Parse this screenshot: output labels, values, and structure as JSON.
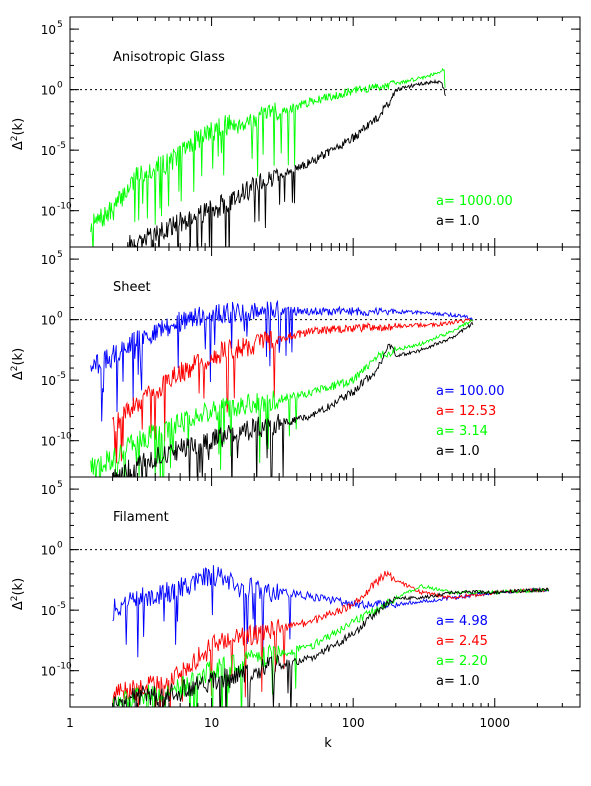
{
  "figure": {
    "xlabel": "k",
    "x_tick_labels": [
      "1",
      "10",
      "100",
      "1000"
    ],
    "y_tick_labels": [
      "10",
      "10",
      "10",
      "10"
    ],
    "y_tick_exponents": [
      "5",
      "0",
      "-5",
      "-10"
    ],
    "ylabel_main": "Δ",
    "ylabel_sup": "2",
    "ylabel_tail": "(k)"
  },
  "chart_data": [
    {
      "type": "line",
      "title": "Anisotropic Glass",
      "xscale": "log",
      "yscale": "log",
      "xlim": [
        1,
        4000
      ],
      "ylim": [
        1e-13,
        1000000.0
      ],
      "reference_line": {
        "y": 1,
        "style": "dotted"
      },
      "legend": [
        {
          "label": "a=",
          "value": "1000.00",
          "color": "#00ff00"
        },
        {
          "label": "a=",
          "value": "1.0",
          "color": "#000000"
        }
      ],
      "series": [
        {
          "color": "#00ff00",
          "x": [
            1.4,
            2,
            3,
            5,
            8,
            12,
            20,
            50,
            100,
            200,
            350,
            440,
            445
          ],
          "y": [
            5e-12,
            1e-10,
            1e-07,
            1e-06,
            0.0001,
            0.001,
            0.003,
            0.1,
            0.8,
            3,
            15,
            50,
            2
          ]
        },
        {
          "color": "#000000",
          "x": [
            2.5,
            4,
            6,
            10,
            20,
            50,
            100,
            150,
            180,
            200,
            300,
            420,
            450
          ],
          "y": [
            1e-13,
            1e-12,
            1e-11,
            1e-10,
            1e-08,
            1e-06,
            0.0001,
            0.005,
            0.1,
            1,
            3,
            5,
            0.3
          ]
        }
      ]
    },
    {
      "type": "line",
      "title": "Sheet",
      "xscale": "log",
      "yscale": "log",
      "xlim": [
        1,
        4000
      ],
      "ylim": [
        1e-13,
        1000000.0
      ],
      "reference_line": {
        "y": 1,
        "style": "dotted"
      },
      "legend": [
        {
          "label": "a=",
          "value": "100.00",
          "color": "#0000ff"
        },
        {
          "label": "a=",
          "value": "12.53",
          "color": "#ff0000"
        },
        {
          "label": "a=",
          "value": "3.14",
          "color": "#00ff00"
        },
        {
          "label": "a=",
          "value": "1.0",
          "color": "#000000"
        }
      ],
      "series": [
        {
          "color": "#0000ff",
          "x": [
            1.4,
            2,
            3,
            5,
            8,
            15,
            30,
            100,
            300,
            600,
            700
          ],
          "y": [
            0.0001,
            0.001,
            0.02,
            0.3,
            2,
            4,
            5,
            5,
            4,
            2,
            1
          ]
        },
        {
          "color": "#ff0000",
          "x": [
            2,
            3,
            5,
            10,
            20,
            50,
            100,
            200,
            400,
            700
          ],
          "y": [
            3e-09,
            1e-07,
            1e-05,
            0.001,
            0.01,
            0.1,
            0.2,
            0.3,
            0.4,
            1
          ]
        },
        {
          "color": "#00ff00",
          "x": [
            1.4,
            2,
            3,
            5,
            10,
            20,
            50,
            100,
            150,
            200,
            300,
            500,
            700
          ],
          "y": [
            1e-12,
            3e-12,
            1e-10,
            1e-09,
            3e-08,
            1e-07,
            1e-06,
            1e-05,
            0.001,
            0.003,
            0.01,
            0.1,
            1
          ]
        },
        {
          "color": "#000000",
          "x": [
            2,
            3,
            5,
            10,
            20,
            50,
            100,
            150,
            180,
            200,
            300,
            500,
            700
          ],
          "y": [
            1e-13,
            1e-12,
            1e-11,
            1e-10,
            1e-09,
            1e-08,
            1e-06,
            0.0001,
            0.01,
            0.001,
            0.003,
            0.03,
            0.5
          ]
        }
      ]
    },
    {
      "type": "line",
      "title": "Filament",
      "xscale": "log",
      "yscale": "log",
      "xlim": [
        1,
        4000
      ],
      "ylim": [
        1e-13,
        1000000.0
      ],
      "reference_line": {
        "y": 1,
        "style": "dotted"
      },
      "legend": [
        {
          "label": "a=",
          "value": "4.98",
          "color": "#0000ff"
        },
        {
          "label": "a=",
          "value": "2.45",
          "color": "#ff0000"
        },
        {
          "label": "a=",
          "value": "2.20",
          "color": "#00ff00"
        },
        {
          "label": "a=",
          "value": "1.0",
          "color": "#000000"
        }
      ],
      "series": [
        {
          "color": "#0000ff",
          "x": [
            2,
            3,
            5,
            8,
            10,
            15,
            30,
            60,
            100,
            200,
            500,
            1000,
            2400
          ],
          "y": [
            1e-05,
            0.0001,
            0.0003,
            0.003,
            0.01,
            0.001,
            0.0003,
            0.0001,
            3e-05,
            3e-05,
            0.0001,
            0.0003,
            0.0005
          ]
        },
        {
          "color": "#ff0000",
          "x": [
            2,
            3,
            5,
            10,
            20,
            50,
            100,
            170,
            200,
            300,
            500,
            1000,
            2400
          ],
          "y": [
            1e-12,
            3e-12,
            1e-11,
            1e-08,
            1e-07,
            1e-06,
            3e-05,
            0.01,
            0.003,
            0.0003,
            0.0001,
            0.0003,
            0.0005
          ]
        },
        {
          "color": "#00ff00",
          "x": [
            2,
            3,
            5,
            10,
            20,
            50,
            100,
            200,
            300,
            500,
            1000,
            2400
          ],
          "y": [
            1e-13,
            1e-12,
            1e-12,
            1e-10,
            1e-09,
            1e-08,
            1e-06,
            0.0001,
            0.001,
            0.0003,
            0.0003,
            0.0005
          ]
        },
        {
          "color": "#000000",
          "x": [
            2,
            3,
            5,
            10,
            20,
            50,
            100,
            150,
            200,
            300,
            500,
            1000,
            2400
          ],
          "y": [
            1e-13,
            1e-12,
            1e-12,
            1e-11,
            1e-10,
            1e-09,
            1e-07,
            1e-05,
            0.0001,
            0.0001,
            0.0003,
            0.0003,
            0.0005
          ]
        }
      ]
    }
  ]
}
